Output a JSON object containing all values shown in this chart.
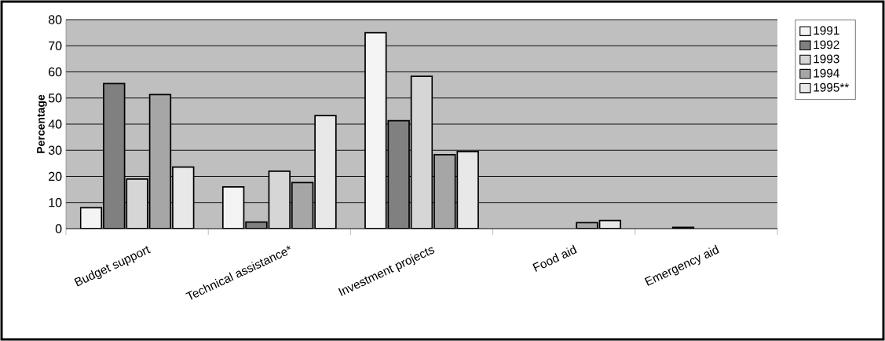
{
  "chart_data": {
    "type": "bar",
    "ylabel": "Percentage",
    "categories": [
      "Budget support",
      "Technical assistance*",
      "Investment projects",
      "Food aid",
      "Emergency aid"
    ],
    "series": [
      {
        "name": "1991",
        "color": "#f4f4f4",
        "values": [
          8,
          16,
          75,
          null,
          null
        ]
      },
      {
        "name": "1992",
        "color": "#808080",
        "values": [
          55.5,
          2.5,
          41.3,
          null,
          0.5
        ]
      },
      {
        "name": "1993",
        "color": "#d6d6d6",
        "values": [
          19,
          22,
          58.3,
          null,
          null
        ]
      },
      {
        "name": "1994",
        "color": "#a6a6a6",
        "values": [
          51.3,
          17.6,
          28.3,
          2.3,
          null
        ]
      },
      {
        "name": "1995**",
        "color": "#e8e8e8",
        "values": [
          23.6,
          43.3,
          29.5,
          3.1,
          null
        ]
      }
    ],
    "ylim": [
      0,
      80
    ],
    "yticks": [
      0,
      10,
      20,
      30,
      40,
      50,
      60,
      70,
      80
    ],
    "grid": "y",
    "legend": "top right"
  }
}
